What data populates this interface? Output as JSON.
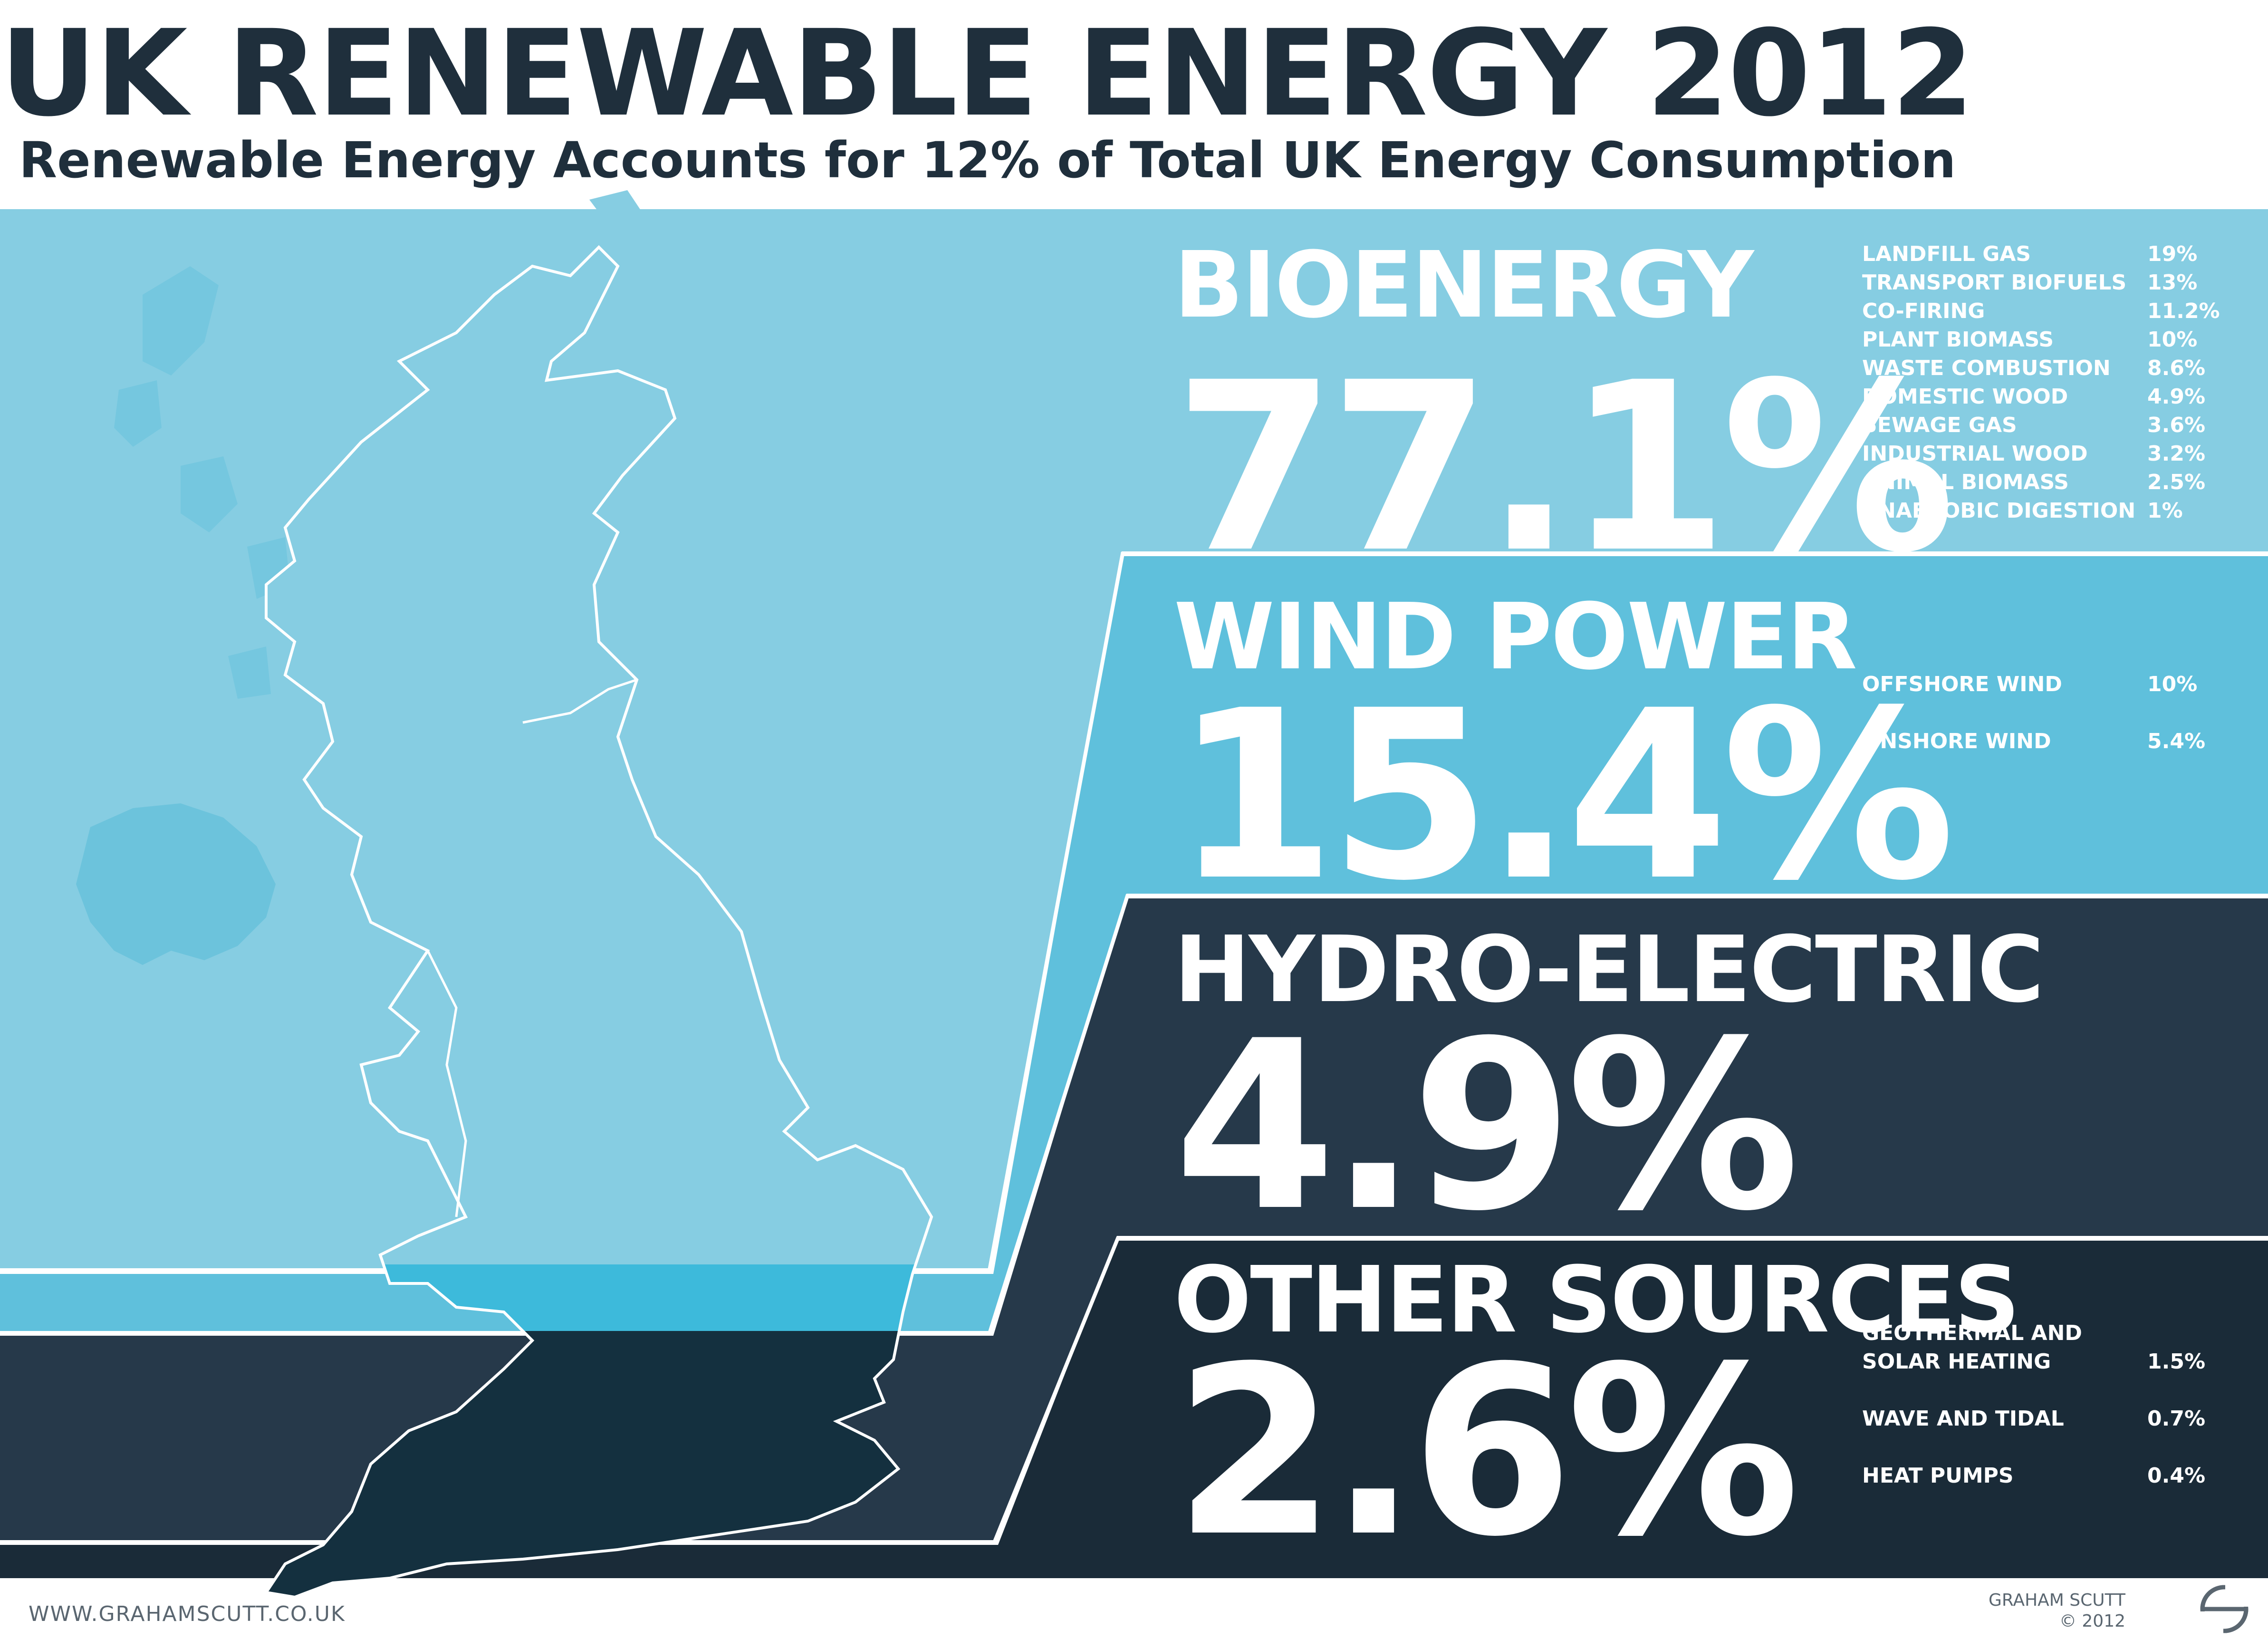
{
  "title": "UK RENEWABLE ENERGY 2012",
  "subtitle": "Renewable Energy Accounts for 12% of Total UK Energy Consumption",
  "colors": {
    "bioenergy": "#86cde2",
    "wind": "#5fc0dc",
    "hydro": "#26394a",
    "other": "#1a2b38",
    "title": "#1f2f3c"
  },
  "chart_data": {
    "type": "bar",
    "title": "UK RENEWABLE ENERGY 2012",
    "subtitle": "Renewable Energy Accounts for 12% of Total UK Energy Consumption",
    "categories": [
      "BIOENERGY",
      "WIND POWER",
      "HYDRO-ELECTRIC",
      "OTHER SOURCES"
    ],
    "values": [
      77.1,
      15.4,
      4.9,
      2.6
    ],
    "value_labels": [
      "77.1%",
      "15.4%",
      "4.9%",
      "2.6%"
    ],
    "unit": "%",
    "breakdown": [
      {
        "category": "BIOENERGY",
        "items": [
          {
            "label": "LANDFILL GAS",
            "value": "19%"
          },
          {
            "label": "TRANSPORT BIOFUELS",
            "value": "13%"
          },
          {
            "label": "CO-FIRING",
            "value": "11.2%"
          },
          {
            "label": "PLANT BIOMASS",
            "value": "10%"
          },
          {
            "label": "WASTE COMBUSTION",
            "value": "8.6%"
          },
          {
            "label": "DOMESTIC WOOD",
            "value": "4.9%"
          },
          {
            "label": "SEWAGE GAS",
            "value": "3.6%"
          },
          {
            "label": "INDUSTRIAL WOOD",
            "value": "3.2%"
          },
          {
            "label": "ANIMAL BIOMASS",
            "value": "2.5%"
          },
          {
            "label": "ANAEROBIC DIGESTION",
            "value": "1%"
          }
        ]
      },
      {
        "category": "WIND POWER",
        "items": [
          {
            "label": "OFFSHORE WIND",
            "value": "10%"
          },
          {
            "label": "ONSHORE WIND",
            "value": "5.4%"
          }
        ]
      },
      {
        "category": "HYDRO-ELECTRIC",
        "items": []
      },
      {
        "category": "OTHER SOURCES",
        "items": [
          {
            "label": "GEOTHERMAL AND",
            "label2": "SOLAR HEATING",
            "value": "1.5%"
          },
          {
            "label": "WAVE AND TIDAL",
            "value": "0.7%"
          },
          {
            "label": "HEAT PUMPS",
            "value": "0.4%"
          }
        ]
      }
    ]
  },
  "footer": {
    "url": "WWW.GRAHAMSCUTT.CO.UK",
    "author": "GRAHAM SCUTT",
    "copyright": "© 2012"
  }
}
